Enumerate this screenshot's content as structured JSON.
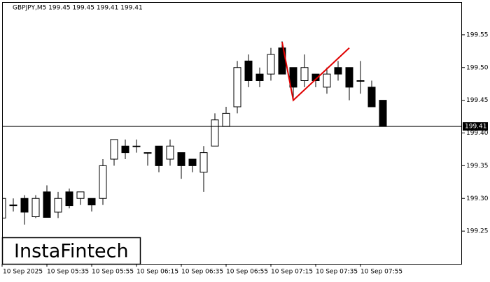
{
  "chart_data": {
    "type": "candlestick",
    "title": "GBPJPY,M5  199.45 199.45 199.41 199.41",
    "x": [
      "05:15",
      "05:20",
      "05:25",
      "05:30",
      "05:35",
      "05:40",
      "05:45",
      "05:50",
      "05:55",
      "06:00",
      "06:05",
      "06:10",
      "06:15",
      "06:20",
      "06:25",
      "06:30",
      "06:35",
      "06:40",
      "06:45",
      "06:50",
      "06:55",
      "07:00",
      "07:05",
      "07:10",
      "07:15",
      "07:20",
      "07:25",
      "07:30",
      "07:35",
      "07:40",
      "07:45",
      "07:50",
      "07:55",
      "08:00",
      "08:05"
    ],
    "open": [
      199.27,
      199.29,
      199.3,
      199.272,
      199.31,
      199.279,
      199.31,
      199.3,
      199.3,
      199.3,
      199.36,
      199.38,
      199.38,
      199.37,
      199.38,
      199.36,
      199.37,
      199.36,
      199.34,
      199.38,
      199.41,
      199.44,
      199.51,
      199.49,
      199.49,
      199.53,
      199.5,
      199.48,
      199.49,
      199.47,
      199.5,
      199.5,
      199.48,
      199.47,
      199.45
    ],
    "high": [
      199.31,
      199.3,
      199.305,
      199.305,
      199.32,
      199.31,
      199.315,
      199.31,
      199.3,
      199.36,
      199.39,
      199.39,
      199.39,
      199.37,
      199.38,
      199.39,
      199.37,
      199.36,
      199.38,
      199.43,
      199.44,
      199.51,
      199.52,
      199.5,
      199.53,
      199.54,
      199.5,
      199.52,
      199.49,
      199.5,
      199.51,
      199.5,
      199.51,
      199.48,
      199.45
    ],
    "low": [
      199.27,
      199.28,
      199.26,
      199.27,
      199.271,
      199.27,
      199.285,
      199.29,
      199.28,
      199.29,
      199.35,
      199.36,
      199.37,
      199.35,
      199.34,
      199.35,
      199.33,
      199.34,
      199.31,
      199.38,
      199.41,
      199.43,
      199.47,
      199.47,
      199.48,
      199.49,
      199.45,
      199.47,
      199.47,
      199.46,
      199.48,
      199.45,
      199.46,
      199.44,
      199.41
    ],
    "close": [
      199.3,
      199.29,
      199.279,
      199.3,
      199.271,
      199.3,
      199.289,
      199.31,
      199.29,
      199.35,
      199.39,
      199.37,
      199.38,
      199.37,
      199.35,
      199.38,
      199.35,
      199.35,
      199.37,
      199.42,
      199.43,
      199.5,
      199.48,
      199.48,
      199.52,
      199.49,
      199.47,
      199.5,
      199.48,
      199.49,
      199.49,
      199.47,
      199.48,
      199.44,
      199.41
    ],
    "up_color": "#ffffff",
    "down_color": "#000000",
    "ylim": [
      199.2,
      199.6
    ],
    "yticks": [
      {
        "value": 199.25,
        "label": "199.25"
      },
      {
        "value": 199.3,
        "label": "199.30"
      },
      {
        "value": 199.35,
        "label": "199.35"
      },
      {
        "value": 199.4,
        "label": "199.40"
      },
      {
        "value": 199.45,
        "label": "199.45"
      },
      {
        "value": 199.5,
        "label": "199.50"
      },
      {
        "value": 199.55,
        "label": "199.55"
      }
    ],
    "xticks": [
      {
        "value": "05:15",
        "label": "10 Sep 2025"
      },
      {
        "value": "05:35",
        "label": "10 Sep 05:35"
      },
      {
        "value": "05:55",
        "label": "10 Sep 05:55"
      },
      {
        "value": "06:15",
        "label": "10 Sep 06:15"
      },
      {
        "value": "06:35",
        "label": "10 Sep 06:35"
      },
      {
        "value": "06:55",
        "label": "10 Sep 06:55"
      },
      {
        "value": "07:15",
        "label": "10 Sep 07:15"
      },
      {
        "value": "07:35",
        "label": "10 Sep 07:35"
      },
      {
        "value": "07:55",
        "label": "10 Sep 07:55"
      }
    ],
    "current_price": 199.41,
    "pattern": {
      "color": "#e00000",
      "x": [
        "07:20",
        "07:25",
        "07:50"
      ],
      "values": [
        199.539,
        199.45,
        199.53
      ]
    },
    "logo": "InstaFintech"
  }
}
